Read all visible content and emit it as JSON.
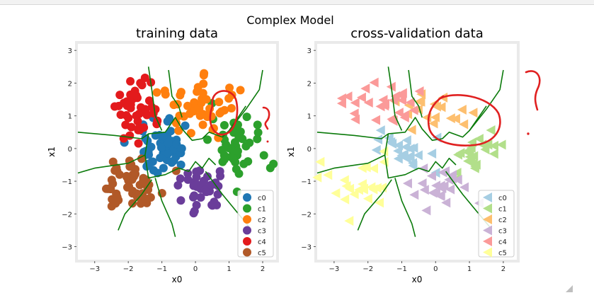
{
  "figure": {
    "suptitle": "Complex Model"
  },
  "chart_data": [
    {
      "type": "scatter",
      "title": "training data",
      "xlabel": "x0",
      "ylabel": "x1",
      "xlim": [
        -3.5,
        2.4
      ],
      "ylim": [
        -3.4,
        3.2
      ],
      "xticks": [
        "−3",
        "−2",
        "−1",
        "0",
        "1",
        "2"
      ],
      "xtick_values": [
        -3,
        -2,
        -1,
        0,
        1,
        2
      ],
      "yticks": [
        "3",
        "2",
        "1",
        "0",
        "−1",
        "−2",
        "−3"
      ],
      "ytick_values": [
        3,
        2,
        1,
        0,
        -1,
        -2,
        -3
      ],
      "marker": "circle",
      "legend_placement": "bottom-right",
      "series": [
        {
          "name": "c0",
          "color": "#1f77b4",
          "center": [
            -1.0,
            0.0
          ],
          "spread": [
            0.45,
            0.35
          ],
          "count": 55
        },
        {
          "name": "c1",
          "color": "#2ca02c",
          "center": [
            1.2,
            0.0
          ],
          "spread": [
            0.4,
            0.45
          ],
          "count": 45
        },
        {
          "name": "c2",
          "color": "#ff7f0e",
          "center": [
            0.2,
            1.3
          ],
          "spread": [
            0.5,
            0.4
          ],
          "count": 50
        },
        {
          "name": "c3",
          "color": "#6a3d9a",
          "center": [
            0.1,
            -1.3
          ],
          "spread": [
            0.4,
            0.35
          ],
          "count": 40
        },
        {
          "name": "c4",
          "color": "#e31a1c",
          "center": [
            -1.8,
            1.2
          ],
          "spread": [
            0.45,
            0.45
          ],
          "count": 45
        },
        {
          "name": "c5",
          "color": "#b15928",
          "center": [
            -1.9,
            -1.1
          ],
          "spread": [
            0.4,
            0.45
          ],
          "count": 55
        }
      ],
      "boundaries": [
        [
          [
            -3.5,
            0.5
          ],
          [
            -2.4,
            0.4
          ],
          [
            -1.6,
            0.3
          ],
          [
            -1.4,
            0.45
          ],
          [
            -0.9,
            0.5
          ],
          [
            -0.6,
            0.95
          ],
          [
            -0.4,
            0.6
          ],
          [
            -0.1,
            0.25
          ],
          [
            0.2,
            0.3
          ],
          [
            0.4,
            0.5
          ],
          [
            0.8,
            0.35
          ],
          [
            1.0,
            0.55
          ],
          [
            1.5,
            1.3
          ]
        ],
        [
          [
            -1.4,
            0.45
          ],
          [
            -1.5,
            -0.2
          ],
          [
            -1.4,
            -0.9
          ],
          [
            -0.9,
            -0.8
          ],
          [
            -0.5,
            -0.6
          ],
          [
            -0.2,
            -0.7
          ],
          [
            0.0,
            -0.4
          ],
          [
            0.2,
            -0.6
          ],
          [
            0.4,
            -0.3
          ],
          [
            0.6,
            -0.5
          ]
        ],
        [
          [
            -1.4,
            2.5
          ],
          [
            -1.3,
            1.8
          ],
          [
            -1.2,
            1.0
          ],
          [
            -1.0,
            0.55
          ]
        ],
        [
          [
            -0.8,
            2.4
          ],
          [
            -0.7,
            1.6
          ],
          [
            -0.5,
            1.3
          ],
          [
            -0.4,
            0.95
          ]
        ],
        [
          [
            1.0,
            0.55
          ],
          [
            1.5,
            1.2
          ],
          [
            1.9,
            1.8
          ],
          [
            2.0,
            2.4
          ]
        ],
        [
          [
            -1.5,
            -0.2
          ],
          [
            -2.0,
            -0.45
          ],
          [
            -3.0,
            -0.6
          ],
          [
            -3.5,
            -0.75
          ]
        ],
        [
          [
            -1.2,
            -0.9
          ],
          [
            -1.0,
            -1.6
          ],
          [
            -0.7,
            -2.3
          ],
          [
            -0.6,
            -2.7
          ]
        ],
        [
          [
            0.3,
            -0.7
          ],
          [
            0.8,
            -1.4
          ],
          [
            1.2,
            -1.9
          ],
          [
            1.6,
            -2.4
          ]
        ],
        [
          [
            -1.3,
            -0.95
          ],
          [
            -1.6,
            -1.4
          ],
          [
            -2.1,
            -2.0
          ],
          [
            -2.3,
            -2.5
          ]
        ]
      ]
    },
    {
      "type": "scatter",
      "title": "cross-validation data",
      "xlabel": "x0",
      "ylabel": "x1",
      "xlim": [
        -3.5,
        2.4
      ],
      "ylim": [
        -3.4,
        3.2
      ],
      "xticks": [
        "−3",
        "−2",
        "−1",
        "0",
        "1",
        "2"
      ],
      "xtick_values": [
        -3,
        -2,
        -1,
        0,
        1,
        2
      ],
      "yticks": [
        "3",
        "2",
        "1",
        "0",
        "−1",
        "−2",
        "−3"
      ],
      "ytick_values": [
        3,
        2,
        1,
        0,
        -1,
        -2,
        -3
      ],
      "marker": "triangle-left",
      "legend_placement": "bottom-right",
      "series": [
        {
          "name": "c0",
          "color": "#a6cee3",
          "center": [
            -0.9,
            -0.1
          ],
          "spread": [
            0.45,
            0.3
          ],
          "count": 25
        },
        {
          "name": "c1",
          "color": "#b2df8a",
          "center": [
            1.2,
            -0.1
          ],
          "spread": [
            0.4,
            0.4
          ],
          "count": 25
        },
        {
          "name": "c2",
          "color": "#fdbf6f",
          "center": [
            0.0,
            1.2
          ],
          "spread": [
            0.5,
            0.35
          ],
          "count": 20
        },
        {
          "name": "c3",
          "color": "#cab2d6",
          "center": [
            0.0,
            -1.2
          ],
          "spread": [
            0.5,
            0.35
          ],
          "count": 25
        },
        {
          "name": "c4",
          "color": "#fb9a99",
          "center": [
            -1.7,
            1.4
          ],
          "spread": [
            0.55,
            0.35
          ],
          "count": 30
        },
        {
          "name": "c5",
          "color": "#ffff99",
          "center": [
            -2.3,
            -1.1
          ],
          "spread": [
            0.55,
            0.5
          ],
          "count": 25
        }
      ],
      "boundaries": [
        [
          [
            -3.5,
            0.5
          ],
          [
            -2.4,
            0.4
          ],
          [
            -1.6,
            0.3
          ],
          [
            -1.4,
            0.45
          ],
          [
            -0.9,
            0.5
          ],
          [
            -0.6,
            0.95
          ],
          [
            -0.4,
            0.6
          ],
          [
            -0.1,
            0.25
          ],
          [
            0.2,
            0.3
          ],
          [
            0.4,
            0.5
          ],
          [
            0.8,
            0.35
          ],
          [
            1.0,
            0.55
          ],
          [
            1.5,
            1.3
          ]
        ],
        [
          [
            -1.4,
            0.45
          ],
          [
            -1.5,
            -0.2
          ],
          [
            -1.4,
            -0.9
          ],
          [
            -0.9,
            -0.8
          ],
          [
            -0.5,
            -0.6
          ],
          [
            -0.2,
            -0.7
          ],
          [
            0.0,
            -0.4
          ],
          [
            0.2,
            -0.6
          ],
          [
            0.4,
            -0.3
          ],
          [
            0.6,
            -0.5
          ]
        ],
        [
          [
            -1.4,
            2.5
          ],
          [
            -1.3,
            1.8
          ],
          [
            -1.2,
            1.0
          ],
          [
            -1.0,
            0.55
          ]
        ],
        [
          [
            -0.8,
            2.4
          ],
          [
            -0.7,
            1.6
          ],
          [
            -0.5,
            1.3
          ],
          [
            -0.4,
            0.95
          ]
        ],
        [
          [
            1.0,
            0.55
          ],
          [
            1.5,
            1.2
          ],
          [
            1.9,
            1.8
          ],
          [
            2.0,
            2.4
          ]
        ],
        [
          [
            -1.5,
            -0.2
          ],
          [
            -2.0,
            -0.45
          ],
          [
            -3.0,
            -0.6
          ],
          [
            -3.5,
            -0.75
          ]
        ],
        [
          [
            -1.2,
            -0.9
          ],
          [
            -1.0,
            -1.6
          ],
          [
            -0.7,
            -2.3
          ],
          [
            -0.6,
            -2.7
          ]
        ],
        [
          [
            0.3,
            -0.7
          ],
          [
            0.8,
            -1.4
          ],
          [
            1.2,
            -1.9
          ],
          [
            1.6,
            -2.4
          ]
        ],
        [
          [
            -1.3,
            -0.95
          ],
          [
            -1.6,
            -1.4
          ],
          [
            -2.1,
            -2.0
          ],
          [
            -2.3,
            -2.5
          ]
        ]
      ]
    }
  ],
  "colors": {
    "boundary": "#0a7a0a",
    "annotation": "#e02020",
    "axes_frame": "#eaeaea"
  }
}
